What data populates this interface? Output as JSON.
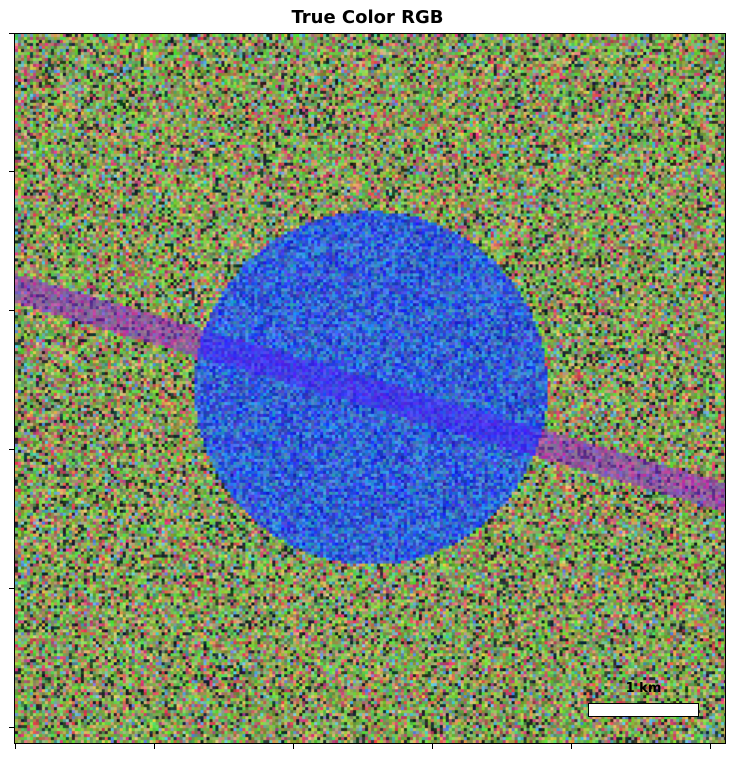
{
  "title": "True Color RGB",
  "scalebar": {
    "label": "1 km"
  },
  "image": {
    "description_colors": {
      "background_green": "#6f8f4a",
      "disk_blue": "#2f4fdc",
      "stripe_blue": "#3a2cff",
      "stripe_purple": "#8a5aa8"
    }
  }
}
